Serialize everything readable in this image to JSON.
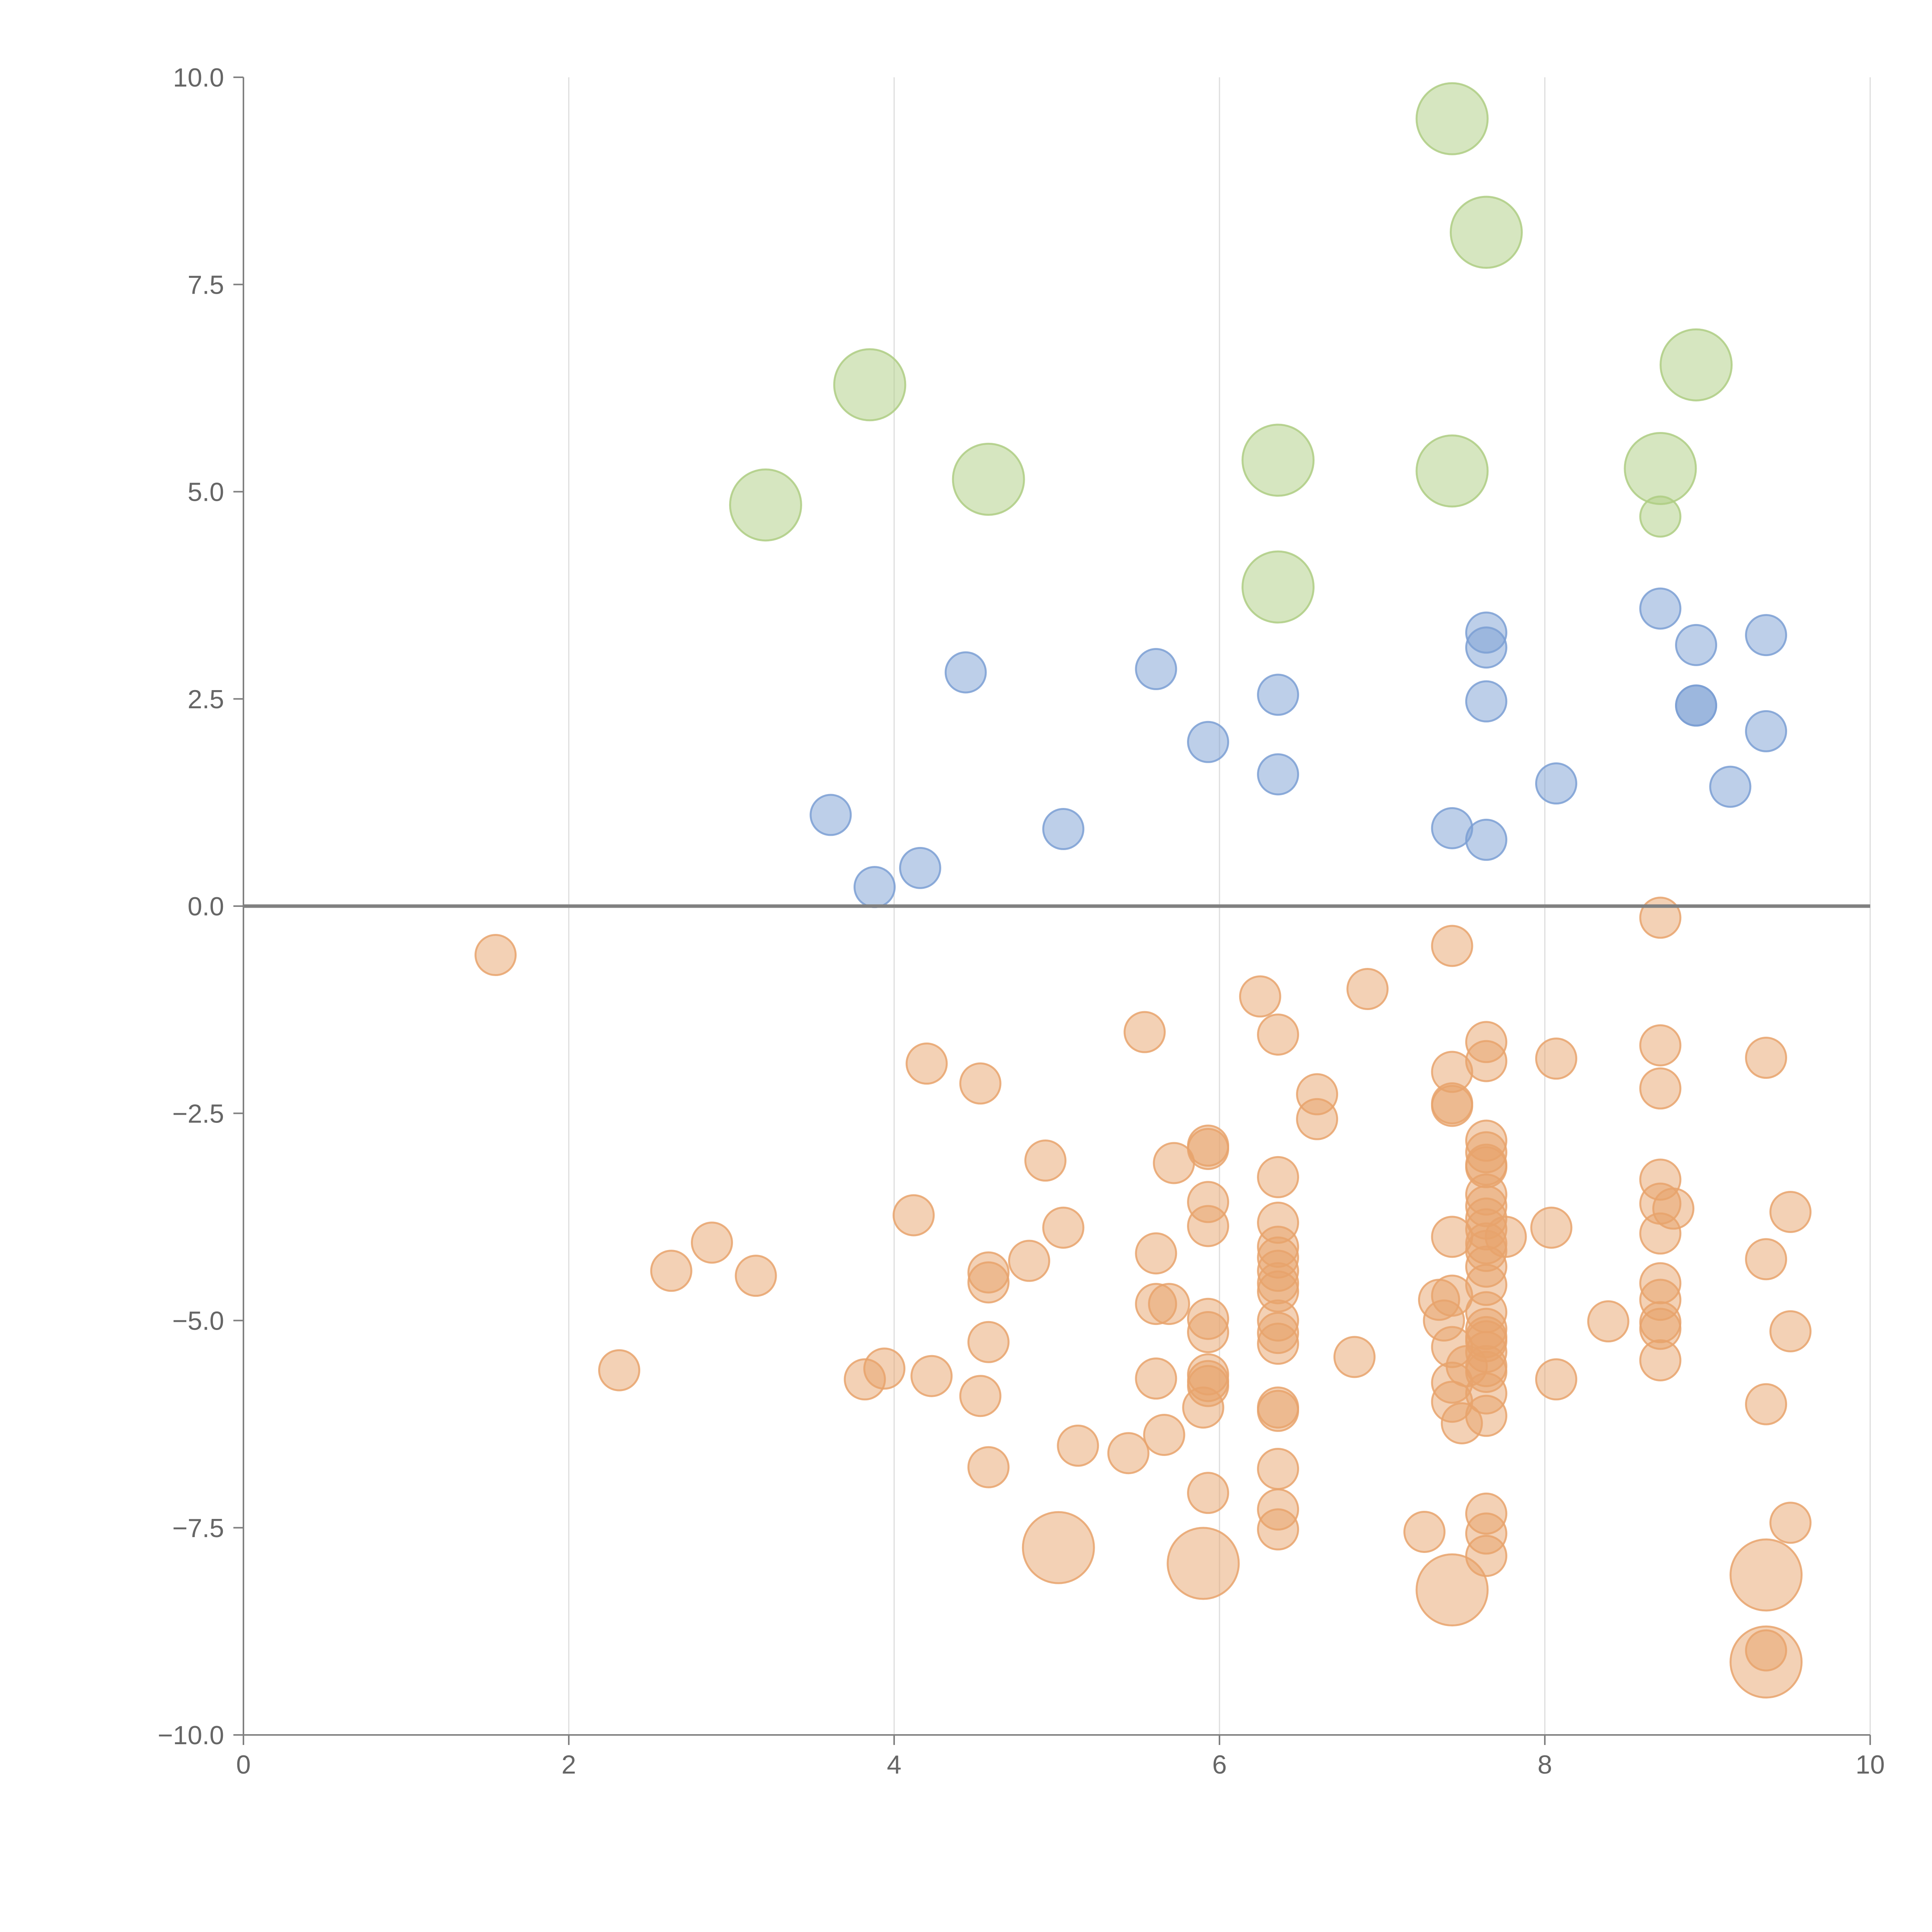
{
  "chart_data": {
    "type": "scatter",
    "title": "",
    "xlabel": "",
    "ylabel": "",
    "xlim": [
      0,
      10
    ],
    "ylim": [
      -10,
      10
    ],
    "x_ticks": [
      0,
      2,
      4,
      6,
      8,
      10
    ],
    "y_ticks": [
      10,
      7.5,
      5,
      2.5,
      0,
      -2.5,
      -5,
      -7.5,
      -10
    ],
    "x_tick_labels": [
      "0",
      "2",
      "4",
      "6",
      "8",
      "10"
    ],
    "y_tick_labels": [
      "10.0",
      "7.5",
      "5.0",
      "2.5",
      "0.0",
      "−2.5",
      "−5.0",
      "−7.5",
      "−10.0"
    ],
    "vertical_grid": true,
    "horizontal_grid": false,
    "zero_line": true,
    "legend": "none",
    "series": [
      {
        "color": "#aecd82",
        "marker_size": "large",
        "points": [
          [
            7.43,
            9.5
          ],
          [
            7.64,
            8.13
          ],
          [
            3.85,
            6.29
          ],
          [
            8.93,
            6.53
          ],
          [
            6.36,
            5.38
          ],
          [
            4.58,
            5.15
          ],
          [
            7.43,
            5.25
          ],
          [
            8.71,
            5.28
          ],
          [
            3.21,
            4.84
          ],
          [
            6.36,
            3.85
          ]
        ]
      },
      {
        "color": "#aecd82",
        "marker_size": "small",
        "points": [
          [
            8.71,
            4.7
          ]
        ]
      },
      {
        "color": "#7b9fd3",
        "marker_size": "small",
        "points": [
          [
            8.71,
            3.59
          ],
          [
            7.64,
            3.3
          ],
          [
            7.64,
            3.12
          ],
          [
            9.36,
            3.27
          ],
          [
            8.93,
            3.15
          ],
          [
            4.44,
            2.82
          ],
          [
            5.61,
            2.86
          ],
          [
            6.36,
            2.55
          ],
          [
            7.64,
            2.47
          ],
          [
            8.93,
            2.42
          ],
          [
            8.93,
            2.42
          ],
          [
            9.36,
            2.11
          ],
          [
            5.93,
            1.98
          ],
          [
            6.36,
            1.59
          ],
          [
            8.07,
            1.48
          ],
          [
            9.14,
            1.44
          ],
          [
            3.61,
            1.1
          ],
          [
            7.43,
            0.94
          ],
          [
            5.04,
            0.93
          ],
          [
            7.64,
            0.8
          ],
          [
            4.16,
            0.46
          ],
          [
            3.88,
            0.23
          ]
        ]
      },
      {
        "color": "#e8a36c",
        "marker_size": "small",
        "points": [
          [
            8.71,
            -0.14
          ],
          [
            7.43,
            -0.48
          ],
          [
            1.55,
            -0.59
          ],
          [
            6.91,
            -1.0
          ],
          [
            6.25,
            -1.09
          ],
          [
            5.54,
            -1.52
          ],
          [
            6.36,
            -1.55
          ],
          [
            7.64,
            -1.64
          ],
          [
            8.71,
            -1.68
          ],
          [
            7.64,
            -1.87
          ],
          [
            8.07,
            -1.84
          ],
          [
            9.36,
            -1.83
          ],
          [
            4.2,
            -1.9
          ],
          [
            7.43,
            -2.0
          ],
          [
            4.53,
            -2.14
          ],
          [
            8.71,
            -2.2
          ],
          [
            6.6,
            -2.27
          ],
          [
            7.43,
            -2.38
          ],
          [
            7.43,
            -2.41
          ],
          [
            6.6,
            -2.57
          ],
          [
            7.64,
            -2.83
          ],
          [
            7.64,
            -2.97
          ],
          [
            5.93,
            -2.89
          ],
          [
            5.93,
            -2.93
          ],
          [
            4.93,
            -3.07
          ],
          [
            5.72,
            -3.1
          ],
          [
            7.64,
            -3.12
          ],
          [
            7.64,
            -3.15
          ],
          [
            6.36,
            -3.27
          ],
          [
            8.71,
            -3.3
          ],
          [
            7.64,
            -3.48
          ],
          [
            5.93,
            -3.57
          ],
          [
            8.71,
            -3.59
          ],
          [
            7.64,
            -3.62
          ],
          [
            8.79,
            -3.65
          ],
          [
            9.51,
            -3.69
          ],
          [
            4.12,
            -3.73
          ],
          [
            7.64,
            -3.77
          ],
          [
            6.36,
            -3.82
          ],
          [
            5.93,
            -3.86
          ],
          [
            5.04,
            -3.88
          ],
          [
            8.04,
            -3.88
          ],
          [
            7.64,
            -3.9
          ],
          [
            8.71,
            -3.95
          ],
          [
            7.43,
            -3.99
          ],
          [
            7.76,
            -3.99
          ],
          [
            7.64,
            -4.07
          ],
          [
            2.88,
            -4.06
          ],
          [
            6.36,
            -4.11
          ],
          [
            7.64,
            -4.16
          ],
          [
            5.61,
            -4.19
          ],
          [
            6.36,
            -4.24
          ],
          [
            9.36,
            -4.26
          ],
          [
            4.83,
            -4.28
          ],
          [
            7.64,
            -4.35
          ],
          [
            6.36,
            -4.4
          ],
          [
            2.63,
            -4.4
          ],
          [
            4.58,
            -4.42
          ],
          [
            3.15,
            -4.46
          ],
          [
            4.58,
            -4.54
          ],
          [
            6.36,
            -4.55
          ],
          [
            8.71,
            -4.55
          ],
          [
            7.64,
            -4.57
          ],
          [
            6.36,
            -4.65
          ],
          [
            7.43,
            -4.7
          ],
          [
            7.35,
            -4.75
          ],
          [
            8.71,
            -4.75
          ],
          [
            5.61,
            -4.8
          ],
          [
            5.69,
            -4.8
          ],
          [
            7.64,
            -4.9
          ],
          [
            5.93,
            -4.98
          ],
          [
            6.36,
            -5.0
          ],
          [
            7.38,
            -5.0
          ],
          [
            8.71,
            -5.02
          ],
          [
            8.39,
            -5.01
          ],
          [
            8.71,
            -5.1
          ],
          [
            7.64,
            -5.1
          ],
          [
            5.93,
            -5.14
          ],
          [
            9.51,
            -5.13
          ],
          [
            6.36,
            -5.15
          ],
          [
            7.64,
            -5.2
          ],
          [
            7.64,
            -5.25
          ],
          [
            4.58,
            -5.26
          ],
          [
            6.36,
            -5.28
          ],
          [
            7.43,
            -5.32
          ],
          [
            7.64,
            -5.38
          ],
          [
            6.83,
            -5.44
          ],
          [
            8.71,
            -5.48
          ],
          [
            7.52,
            -5.55
          ],
          [
            7.64,
            -5.55
          ],
          [
            2.31,
            -5.6
          ],
          [
            3.94,
            -5.58
          ],
          [
            7.64,
            -5.62
          ],
          [
            4.23,
            -5.67
          ],
          [
            5.93,
            -5.65
          ],
          [
            3.82,
            -5.71
          ],
          [
            5.93,
            -5.73
          ],
          [
            5.61,
            -5.7
          ],
          [
            8.07,
            -5.71
          ],
          [
            7.43,
            -5.75
          ],
          [
            5.93,
            -5.79
          ],
          [
            7.64,
            -5.88
          ],
          [
            4.53,
            -5.91
          ],
          [
            7.43,
            -5.98
          ],
          [
            9.36,
            -6.01
          ],
          [
            5.9,
            -6.05
          ],
          [
            6.36,
            -6.05
          ],
          [
            6.36,
            -6.09
          ],
          [
            7.64,
            -6.15
          ],
          [
            7.49,
            -6.24
          ],
          [
            5.66,
            -6.38
          ],
          [
            5.13,
            -6.51
          ],
          [
            5.44,
            -6.6
          ],
          [
            4.58,
            -6.77
          ],
          [
            6.36,
            -6.79
          ],
          [
            5.93,
            -7.08
          ],
          [
            6.36,
            -7.28
          ],
          [
            7.64,
            -7.33
          ],
          [
            9.51,
            -7.44
          ],
          [
            6.36,
            -7.52
          ],
          [
            7.26,
            -7.55
          ],
          [
            7.64,
            -7.57
          ],
          [
            7.64,
            -7.84
          ]
        ]
      },
      {
        "color": "#e8a36c",
        "marker_size": "large",
        "points": [
          [
            5.01,
            -7.74
          ],
          [
            5.9,
            -7.93
          ],
          [
            9.36,
            -8.07
          ],
          [
            7.43,
            -8.25
          ],
          [
            9.36,
            -9.12
          ]
        ]
      },
      {
        "color": "#e8a36c",
        "marker_size": "small",
        "points": [
          [
            9.36,
            -8.98
          ]
        ]
      }
    ]
  }
}
